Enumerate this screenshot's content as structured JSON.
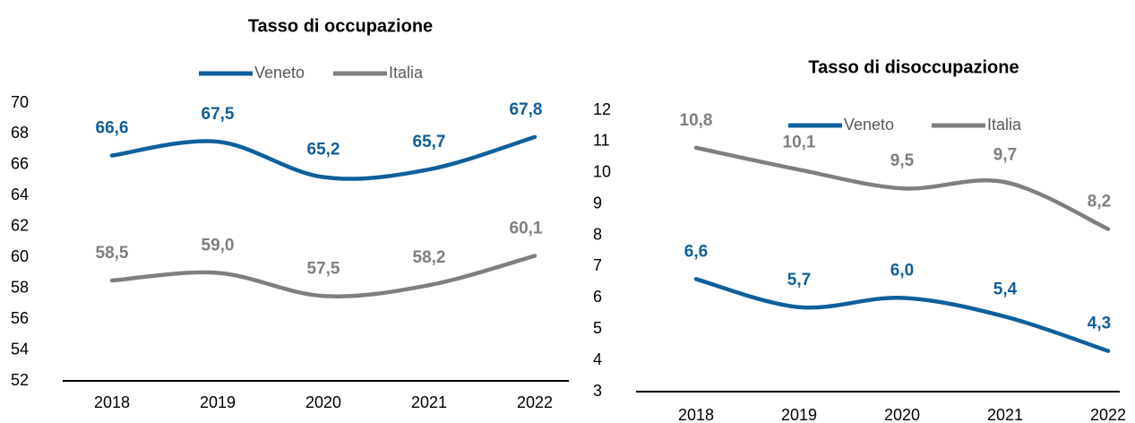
{
  "chart_data": [
    {
      "type": "line",
      "title": "Tasso di occupazione",
      "categories": [
        "2018",
        "2019",
        "2020",
        "2021",
        "2022"
      ],
      "series": [
        {
          "name": "Veneto",
          "color": "#0f5f9c",
          "values": [
            66.6,
            67.5,
            65.2,
            65.7,
            67.8
          ],
          "value_labels": [
            "66,6",
            "67,5",
            "65,2",
            "65,7",
            "67,8"
          ]
        },
        {
          "name": "Italia",
          "color": "#7f7f7f",
          "values": [
            58.5,
            59.0,
            57.5,
            58.2,
            60.1
          ],
          "value_labels": [
            "58,5",
            "59,0",
            "57,5",
            "58,2",
            "60,1"
          ]
        }
      ],
      "ylim": [
        52,
        70
      ],
      "yticks": [
        52,
        54,
        56,
        58,
        60,
        62,
        64,
        66,
        68,
        70
      ],
      "legend": "top"
    },
    {
      "type": "line",
      "title": "Tasso di disoccupazione",
      "categories": [
        "2018",
        "2019",
        "2020",
        "2021",
        "2022"
      ],
      "series": [
        {
          "name": "Veneto",
          "color": "#0f5f9c",
          "values": [
            6.6,
            5.7,
            6.0,
            5.4,
            4.3
          ],
          "value_labels": [
            "6,6",
            "5,7",
            "6,0",
            "5,4",
            "4,3"
          ]
        },
        {
          "name": "Italia",
          "color": "#7f7f7f",
          "values": [
            10.8,
            10.1,
            9.5,
            9.7,
            8.2
          ],
          "value_labels": [
            "10,8",
            "10,1",
            "9,5",
            "9,7",
            "8,2"
          ]
        }
      ],
      "ylim": [
        3,
        12
      ],
      "yticks": [
        3,
        4,
        5,
        6,
        7,
        8,
        9,
        10,
        11,
        12
      ],
      "legend": "top"
    }
  ]
}
